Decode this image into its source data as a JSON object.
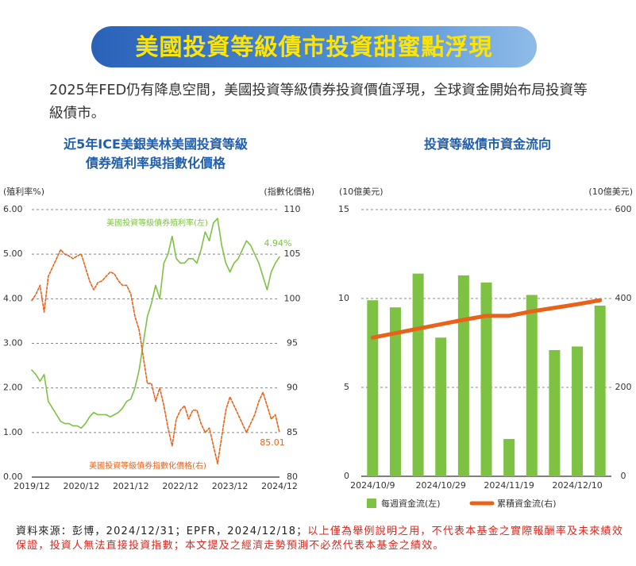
{
  "header": {
    "title": "美國投資等級債市投資甜蜜點浮現",
    "subtitle": "2025年FED仍有降息空間，美國投資等級債券投資價值浮現，全球資金開始布局投資等級債市。"
  },
  "chart_data": [
    {
      "type": "line",
      "title": "近5年ICE美銀美林美國投資等級\n債券殖利率與指數化價格",
      "ylabel": "(殖利率%)",
      "y2label": "(指數化價格)",
      "categories": [
        "2019/12",
        null,
        null,
        null,
        null,
        null,
        null,
        null,
        null,
        null,
        null,
        null,
        "2020/12",
        null,
        null,
        null,
        null,
        null,
        null,
        null,
        null,
        null,
        null,
        null,
        "2021/12",
        null,
        null,
        null,
        null,
        null,
        null,
        null,
        null,
        null,
        null,
        null,
        "2022/12",
        null,
        null,
        null,
        null,
        null,
        null,
        null,
        null,
        null,
        null,
        null,
        "2023/12",
        null,
        null,
        null,
        null,
        null,
        null,
        null,
        null,
        null,
        null,
        null,
        "2024/12"
      ],
      "ylim": [
        0,
        6
      ],
      "yticks": [
        {
          "value": 0,
          "label": "0.00"
        },
        {
          "value": 1,
          "label": "1.00"
        },
        {
          "value": 2,
          "label": "2.00"
        },
        {
          "value": 3,
          "label": "3.00"
        },
        {
          "value": 4,
          "label": "4.00"
        },
        {
          "value": 5,
          "label": "5.00"
        },
        {
          "value": 6,
          "label": "6.00"
        }
      ],
      "y2lim": [
        80,
        110
      ],
      "y2ticks": [
        80,
        85,
        90,
        95,
        100,
        105,
        110
      ],
      "grid": true,
      "legend": "inline",
      "series": [
        {
          "name": "美國投資等級債券殖利率(左)",
          "color": "#7dc242",
          "style": "solid",
          "values": [
            2.4,
            2.3,
            2.15,
            2.3,
            1.7,
            1.55,
            1.4,
            1.25,
            1.2,
            1.2,
            1.15,
            1.15,
            1.1,
            1.2,
            1.35,
            1.45,
            1.4,
            1.4,
            1.4,
            1.35,
            1.4,
            1.45,
            1.55,
            1.7,
            1.75,
            2.0,
            2.4,
            3.0,
            3.6,
            3.9,
            4.3,
            4.0,
            4.8,
            5.0,
            5.4,
            4.9,
            4.8,
            4.8,
            4.9,
            4.9,
            4.8,
            5.1,
            5.5,
            5.3,
            5.7,
            5.8,
            5.2,
            4.8,
            4.6,
            4.8,
            4.9,
            5.1,
            5.3,
            5.2,
            5.0,
            4.8,
            4.5,
            4.2,
            4.6,
            4.8,
            4.94
          ],
          "value_labels": [
            null,
            null,
            null,
            null,
            null,
            null,
            null,
            null,
            null,
            null,
            null,
            null,
            null,
            null,
            null,
            null,
            null,
            null,
            null,
            null,
            null,
            null,
            null,
            null,
            null,
            null,
            null,
            null,
            null,
            null,
            null,
            null,
            null,
            null,
            null,
            null,
            null,
            null,
            null,
            null,
            null,
            null,
            null,
            null,
            null,
            null,
            null,
            null,
            null,
            null,
            null,
            null,
            null,
            null,
            null,
            null,
            null,
            null,
            null,
            null,
            "4.94%"
          ]
        },
        {
          "name": "美國投資等級債券指數化價格(右)",
          "color": "#e8621a",
          "style": "dashed",
          "axis": "y2",
          "values": [
            99.8,
            100.5,
            101.5,
            98.5,
            102.5,
            103.5,
            104.5,
            105.5,
            105.0,
            104.8,
            104.5,
            104.8,
            105.0,
            103.5,
            102.0,
            101.0,
            101.8,
            102.0,
            102.5,
            103.0,
            102.8,
            102.0,
            101.5,
            101.5,
            100.5,
            98.0,
            96.5,
            93.5,
            90.5,
            90.5,
            88.5,
            90.0,
            88.0,
            85.5,
            83.5,
            86.5,
            87.5,
            88.0,
            86.5,
            87.5,
            87.5,
            86.0,
            85.0,
            85.5,
            83.5,
            81.5,
            84.5,
            87.5,
            89.0,
            88.0,
            87.0,
            86.0,
            85.0,
            86.0,
            87.0,
            88.5,
            89.5,
            88.0,
            86.5,
            87.0,
            85.01
          ]
        }
      ]
    },
    {
      "type": "bar",
      "title": "投資等級債市資金流向",
      "ylabel": "(10億美元)",
      "y2label": "(10億美元)",
      "categories": [
        "2024/10/9",
        null,
        null,
        "2024/10/29",
        null,
        null,
        "2024/11/19",
        null,
        null,
        "2024/12/10",
        null
      ],
      "ylim": [
        0,
        15
      ],
      "yticks": [
        0,
        5,
        10,
        15
      ],
      "y2lim": [
        0,
        600
      ],
      "y2ticks": [
        0,
        200,
        400,
        600
      ],
      "grid": true,
      "legend": "bottom",
      "series": [
        {
          "name": "每週資金流(左)",
          "color": "#7dc242",
          "type": "bar",
          "values": [
            9.9,
            9.5,
            11.4,
            7.8,
            11.3,
            10.9,
            2.1,
            10.2,
            7.1,
            7.3,
            9.6
          ]
        },
        {
          "name": "累積資金流(右)",
          "color": "#e8621a",
          "type": "line",
          "axis": "y2",
          "values": [
            312,
            322,
            332,
            342,
            352,
            361,
            361,
            371,
            379,
            387,
            396
          ]
        }
      ]
    }
  ],
  "footer": {
    "source": "資料來源：彭博，2024/12/31；EPFR，2024/12/18；",
    "disclaimer": "以上僅為舉例說明之用，不代表本基金之實際報酬率及未來績效保證，投資人無法直接投資指數；本文提及之經濟走勢預測不必然代表本基金之績效。"
  }
}
